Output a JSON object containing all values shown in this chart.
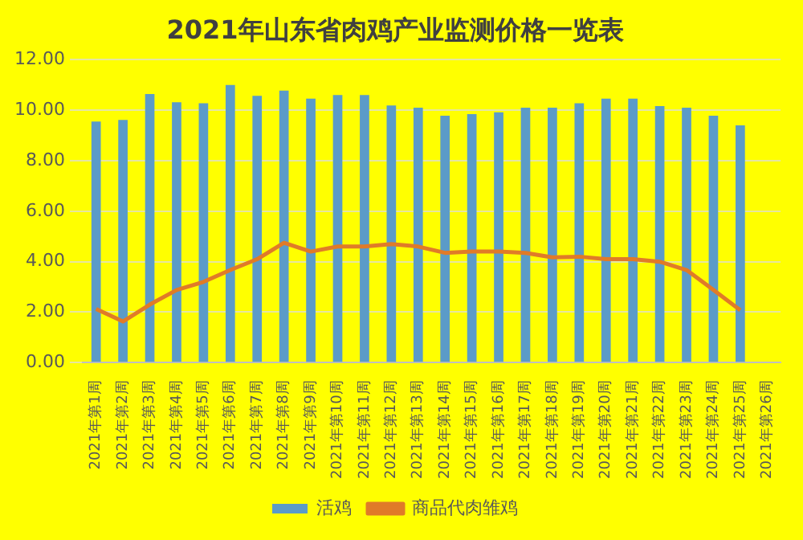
{
  "chart_data": {
    "type": "bar",
    "title": "2021年山东省肉鸡产业监测价格一览表",
    "categories": [
      "2021年第1周",
      "2021年第2周",
      "2021年第3周",
      "2021年第4周",
      "2021年第5周",
      "2021年第6周",
      "2021年第7周",
      "2021年第8周",
      "2021年第9周",
      "2021年第10周",
      "2021年第11周",
      "2021年第12周",
      "2021年第13周",
      "2021年第14周",
      "2021年第15周",
      "2021年第16周",
      "2021年第17周",
      "2021年第18周",
      "2021年第19周",
      "2021年第20周",
      "2021年第21周",
      "2021年第22周",
      "2021年第23周",
      "2021年第24周",
      "2021年第25周",
      "2021年第26周"
    ],
    "series": [
      {
        "name": "活鸡",
        "color": "#5b9bc8",
        "values": [
          9.55,
          9.62,
          10.64,
          10.32,
          10.28,
          11.0,
          10.57,
          10.78,
          10.46,
          10.6,
          10.6,
          10.19,
          10.1,
          9.78,
          9.85,
          9.92,
          10.1,
          10.1,
          10.28,
          10.46,
          10.46,
          10.17,
          10.1,
          9.78,
          9.4,
          null
        ]
      },
      {
        "name": "商品代肉雏鸡",
        "type": "line",
        "color": "#e07b28",
        "values": [
          2.13,
          1.63,
          2.3,
          2.88,
          3.2,
          3.67,
          4.1,
          4.75,
          4.4,
          4.6,
          4.6,
          4.7,
          4.6,
          4.35,
          4.4,
          4.4,
          4.35,
          4.17,
          4.2,
          4.1,
          4.1,
          4.0,
          3.67,
          2.88,
          2.08,
          null
        ]
      }
    ],
    "ylim": [
      0,
      12
    ],
    "yticks": [
      {
        "value": 0,
        "label": "0.00"
      },
      {
        "value": 2,
        "label": "2.00"
      },
      {
        "value": 4,
        "label": "4.00"
      },
      {
        "value": 6,
        "label": "6.00"
      },
      {
        "value": 8,
        "label": "8.00"
      },
      {
        "value": 10,
        "label": "10.00"
      },
      {
        "value": 12,
        "label": "12.00"
      }
    ],
    "grid": "y",
    "legend": "bottom",
    "marker": "none",
    "line_style": "solid"
  }
}
